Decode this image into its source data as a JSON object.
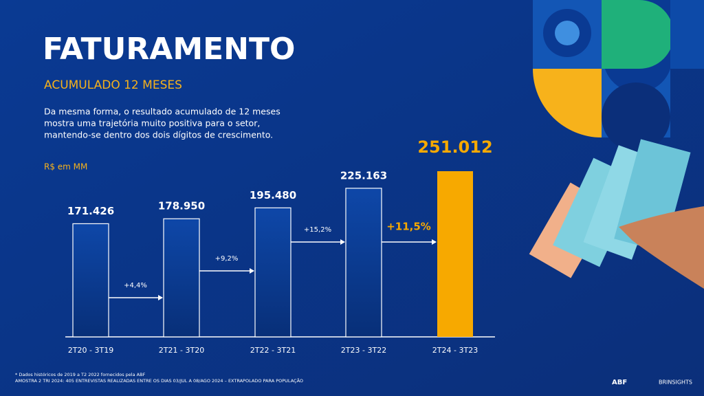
{
  "header": {
    "title": "FATURAMENTO",
    "subtitle": "ACUMULADO 12 MESES",
    "description": [
      "Da mesma forma, o resultado acumulado de 12 meses",
      "mostra uma trajetória muito positiva para o setor,",
      "mantendo-se dentro dos dois dígitos de crescimento."
    ],
    "unit": "R$ em MM"
  },
  "chart_data": {
    "type": "bar",
    "categories": [
      "2T20 - 3T19",
      "2T21 - 3T20",
      "2T22 - 3T21",
      "2T23 - 3T22",
      "2T24 - 3T23"
    ],
    "values": [
      171426,
      178950,
      195480,
      225163,
      251012
    ],
    "value_labels": [
      "171.426",
      "178.950",
      "195.480",
      "225.163",
      "251.012"
    ],
    "color": "#0b3c94",
    "highlight_color": "#f7a900",
    "annotations": [
      "+4,4%",
      "+9,2%",
      "+15,2%",
      "+11,5%"
    ]
  },
  "footnotes": [
    "* Dados históricos de 2019 a T2 2022 fornecidos pela ABF",
    "AMOSTRA 2 TRI 2024: 405 ENTREVISTAS REALIZADAS ENTRE OS DIAS 03/JUL A 08/AGO 2024 – EXTRAPOLADO PARA POPULAÇÃO"
  ],
  "logos": [
    "ABF",
    "BRINSIGHTS"
  ]
}
